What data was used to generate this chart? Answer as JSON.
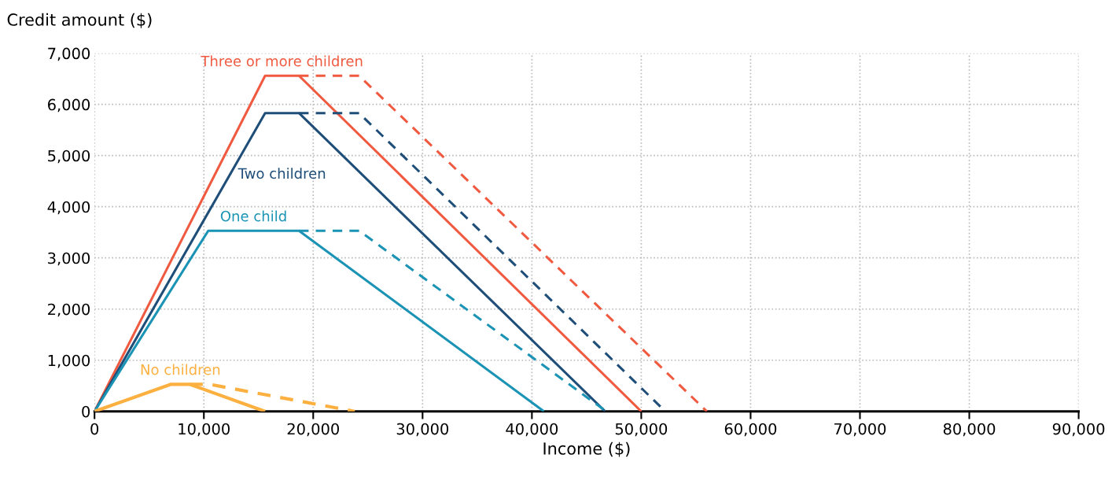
{
  "chart_data": {
    "type": "line",
    "ylabel": "Credit amount ($)",
    "xlabel": "Income ($)",
    "xlim": [
      0,
      90000
    ],
    "ylim": [
      0,
      7000
    ],
    "xticks": [
      0,
      {
        "value": 10000,
        "label": "10,000"
      },
      {
        "value": 20000,
        "label": "20,000"
      },
      {
        "value": 30000,
        "label": "30,000"
      },
      {
        "value": 40000,
        "label": "40,000"
      },
      {
        "value": 50000,
        "label": "50,000"
      },
      {
        "value": 60000,
        "label": "60,000"
      },
      {
        "value": 70000,
        "label": "70,000"
      },
      {
        "value": 80000,
        "label": "80,000"
      },
      {
        "value": 90000,
        "label": "90,000"
      }
    ],
    "yticks": [
      0,
      {
        "value": 1000,
        "label": "1,000"
      },
      {
        "value": 2000,
        "label": "2,000"
      },
      {
        "value": 3000,
        "label": "3,000"
      },
      {
        "value": 4000,
        "label": "4,000"
      },
      {
        "value": 5000,
        "label": "5,000"
      },
      {
        "value": 6000,
        "label": "6,000"
      },
      {
        "value": 7000,
        "label": "7,000"
      }
    ],
    "grid": true,
    "legend": false,
    "marker": "none",
    "series": [
      {
        "name": "Three or more children",
        "color": "#f05a40",
        "line_style": "solid",
        "x": [
          0,
          15600,
          18700,
          50000
        ],
        "values": [
          0,
          6560,
          6560,
          0
        ]
      },
      {
        "color": "#f05a40",
        "line_style": "dashed",
        "x": [
          18700,
          24200,
          56000
        ],
        "values": [
          6560,
          6560,
          0
        ]
      },
      {
        "name": "Two children",
        "color": "#1f4e79",
        "line_style": "solid",
        "x": [
          0,
          15600,
          18700,
          46700
        ],
        "values": [
          0,
          5830,
          5830,
          0
        ]
      },
      {
        "color": "#1f4e79",
        "line_style": "dashed",
        "x": [
          18700,
          24200,
          52200
        ],
        "values": [
          5830,
          5830,
          0
        ]
      },
      {
        "name": "One child",
        "color": "#1a93b4",
        "line_style": "solid",
        "x": [
          0,
          10400,
          18700,
          41100
        ],
        "values": [
          0,
          3530,
          3530,
          0
        ]
      },
      {
        "color": "#1a93b4",
        "line_style": "dashed",
        "x": [
          18700,
          24200,
          46800
        ],
        "values": [
          3530,
          3530,
          0
        ]
      },
      {
        "name": "No children",
        "color": "#fbb040",
        "line_style": "solid",
        "x": [
          0,
          7000,
          8700,
          15600
        ],
        "values": [
          0,
          530,
          530,
          0
        ]
      },
      {
        "color": "#fbb040",
        "line_style": "dashed",
        "x": [
          8700,
          10500,
          23800
        ],
        "values": [
          530,
          530,
          0
        ]
      }
    ]
  }
}
